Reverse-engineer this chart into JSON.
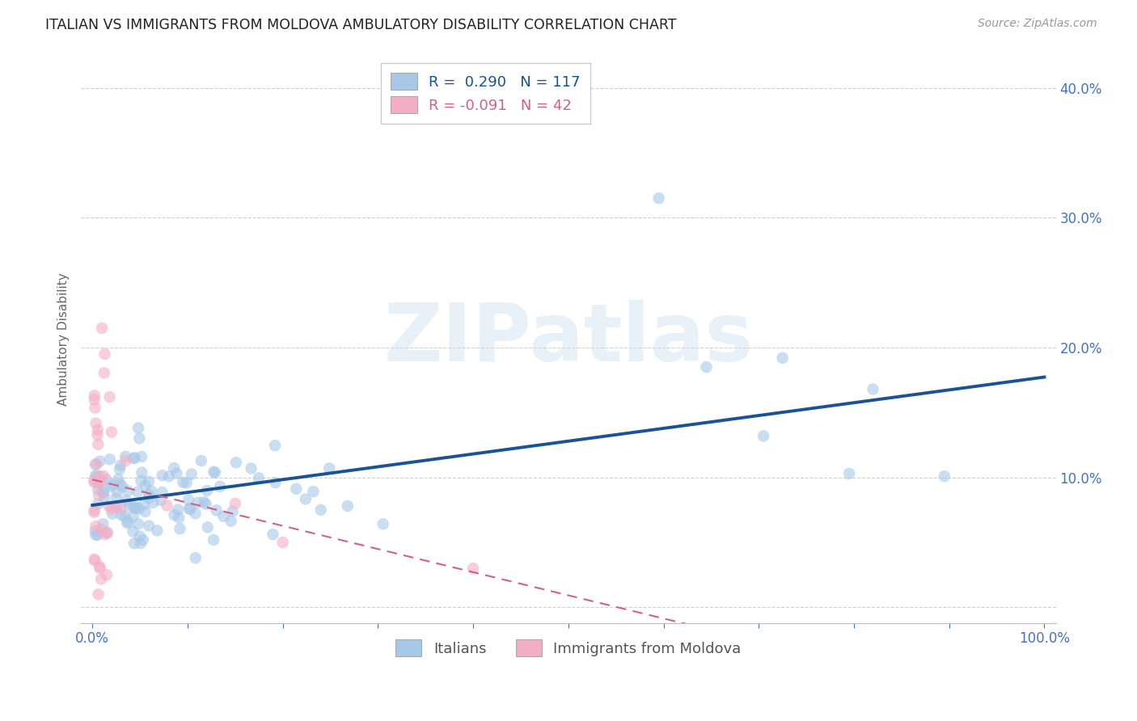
{
  "title": "ITALIAN VS IMMIGRANTS FROM MOLDOVA AMBULATORY DISABILITY CORRELATION CHART",
  "source": "Source: ZipAtlas.com",
  "ylabel": "Ambulatory Disability",
  "watermark": "ZIPatlas",
  "blue_color": "#a8c8e8",
  "pink_color": "#f4aec4",
  "blue_line_color": "#1a5296",
  "pink_line_color": "#d46080",
  "axis_color": "#4472c4",
  "grid_color": "#d0d0d0",
  "background_color": "#ffffff",
  "title_color": "#222222"
}
